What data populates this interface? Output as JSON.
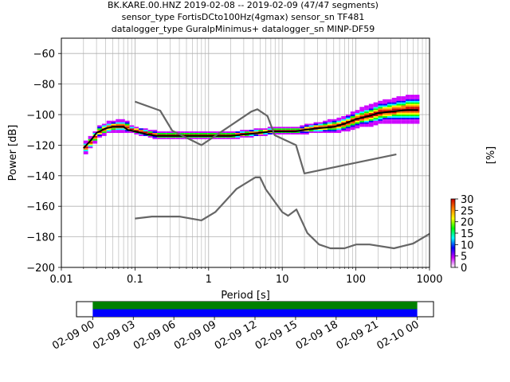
{
  "chart_data": [
    {
      "type": "heatmap",
      "description_kind": "probabilistic power spectral density",
      "title_lines": [
        "BK.KARE.00.HNZ   2019-02-08 -- 2019-02-09  (47/47 segments)",
        "sensor_type FortisDCto100Hz(4gmax) sensor_sn TF481",
        "datalogger_type GuralpMinimus+ datalogger_sn MINP-DF59"
      ],
      "xlabel": "Period [s]",
      "ylabel": "Power [dB]",
      "xscale": "log",
      "xlim": [
        0.01,
        1000
      ],
      "ylim": [
        -200,
        -50
      ],
      "x_ticks": [
        0.01,
        0.1,
        1,
        10,
        100,
        1000
      ],
      "x_tick_labels": [
        "0.01",
        "0.1",
        "1",
        "10",
        "100",
        "1000"
      ],
      "y_ticks": [
        -200,
        -180,
        -160,
        -140,
        -120,
        -100,
        -80,
        -60
      ],
      "y_tick_labels": [
        "−200",
        "−180",
        "−160",
        "−140",
        "−120",
        "−100",
        "−80",
        "−60"
      ],
      "grid": true,
      "colorbar": {
        "label": "[%]",
        "range": [
          0,
          30
        ],
        "ticks": [
          "0",
          "5",
          "10",
          "15",
          "20",
          "25",
          "30"
        ],
        "colors": [
          "#ffffff",
          "#cc00ff",
          "#0000ff",
          "#00ffff",
          "#00ff00",
          "#ffff00",
          "#ff8000",
          "#cc0000"
        ]
      },
      "series": [
        {
          "name": "",
          "kind": "mode",
          "color": "#000000",
          "x": [
            0.02,
            0.025,
            0.03,
            0.04,
            0.05,
            0.06,
            0.07,
            0.08,
            0.1,
            0.12,
            0.15,
            0.2,
            0.3,
            0.5,
            0.8,
            1,
            2,
            3,
            5,
            7,
            10,
            15,
            20,
            30,
            50,
            70,
            100,
            150,
            200,
            300,
            500,
            700
          ],
          "y": [
            -122,
            -117,
            -112,
            -109,
            -108,
            -108,
            -108,
            -110,
            -111,
            -112,
            -113,
            -114,
            -114,
            -114,
            -114,
            -114,
            -114,
            -113,
            -112,
            -111,
            -111,
            -111,
            -110,
            -109,
            -108,
            -106,
            -103,
            -101,
            -99,
            -98,
            -97,
            -97
          ]
        },
        {
          "name": "",
          "kind": "new-high-noise-model",
          "color": "#666666",
          "x": [
            0.1,
            0.22,
            0.32,
            0.8,
            3.8,
            4.6,
            6.3,
            7.9,
            15.4,
            20,
            354.8
          ],
          "y": [
            -91.5,
            -97.4,
            -110.5,
            -120,
            -98,
            -96.5,
            -101,
            -113.5,
            -120,
            -138.5,
            -126
          ]
        },
        {
          "name": "",
          "kind": "new-low-noise-model",
          "color": "#666666",
          "x": [
            0.1,
            0.17,
            0.4,
            0.8,
            1.24,
            2.4,
            4.3,
            5,
            6,
            10,
            12,
            15.6,
            21.9,
            31.6,
            45,
            70,
            101,
            154,
            328,
            600,
            1000
          ],
          "y": [
            -168,
            -166.7,
            -166.7,
            -169.2,
            -163.7,
            -148.6,
            -141.1,
            -141.1,
            -149,
            -163.8,
            -166.2,
            -162.1,
            -177.5,
            -185,
            -187.5,
            -187.5,
            -185,
            -185,
            -187.5,
            -184.4,
            -178
          ]
        }
      ]
    },
    {
      "type": "bar",
      "description_kind": "data-coverage timeline",
      "x_tick_labels": [
        "02-09 00",
        "02-09 03",
        "02-09 06",
        "02-09 09",
        "02-09 12",
        "02-09 15",
        "02-09 18",
        "02-09 21",
        "02-10 00"
      ],
      "x_range_hours": [
        -1.2,
        25.2
      ],
      "segments": [
        {
          "label": "",
          "start_hour": 0,
          "end_hour": 24,
          "color": "#008000",
          "row": "top"
        },
        {
          "label": "",
          "start_hour": 0,
          "end_hour": 24,
          "color": "#0000ff",
          "row": "bottom"
        }
      ]
    }
  ]
}
